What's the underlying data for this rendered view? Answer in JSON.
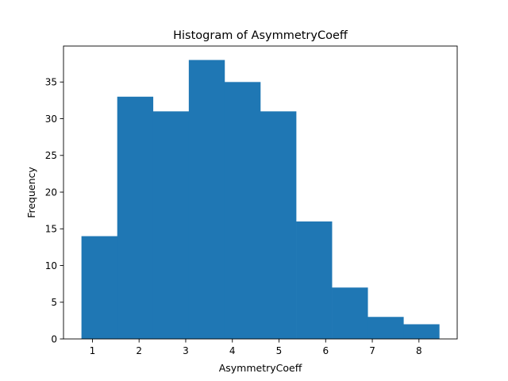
{
  "chart_data": {
    "type": "bar",
    "title": "Histogram of AsymmetryCoeff",
    "xlabel": "AsymmetryCoeff",
    "ylabel": "Frequency",
    "bin_edges": [
      0.765,
      1.532,
      2.299,
      3.066,
      3.833,
      4.6,
      5.367,
      6.134,
      6.901,
      7.668,
      8.435
    ],
    "values": [
      14,
      33,
      31,
      38,
      35,
      31,
      16,
      7,
      3,
      2
    ],
    "xlim": [
      0.38,
      8.82
    ],
    "ylim": [
      0,
      39.9
    ],
    "xticks": [
      1,
      2,
      3,
      4,
      5,
      6,
      7,
      8
    ],
    "yticks": [
      0,
      5,
      10,
      15,
      20,
      25,
      30,
      35
    ],
    "bar_color": "#1f77b4",
    "grid": false
  }
}
